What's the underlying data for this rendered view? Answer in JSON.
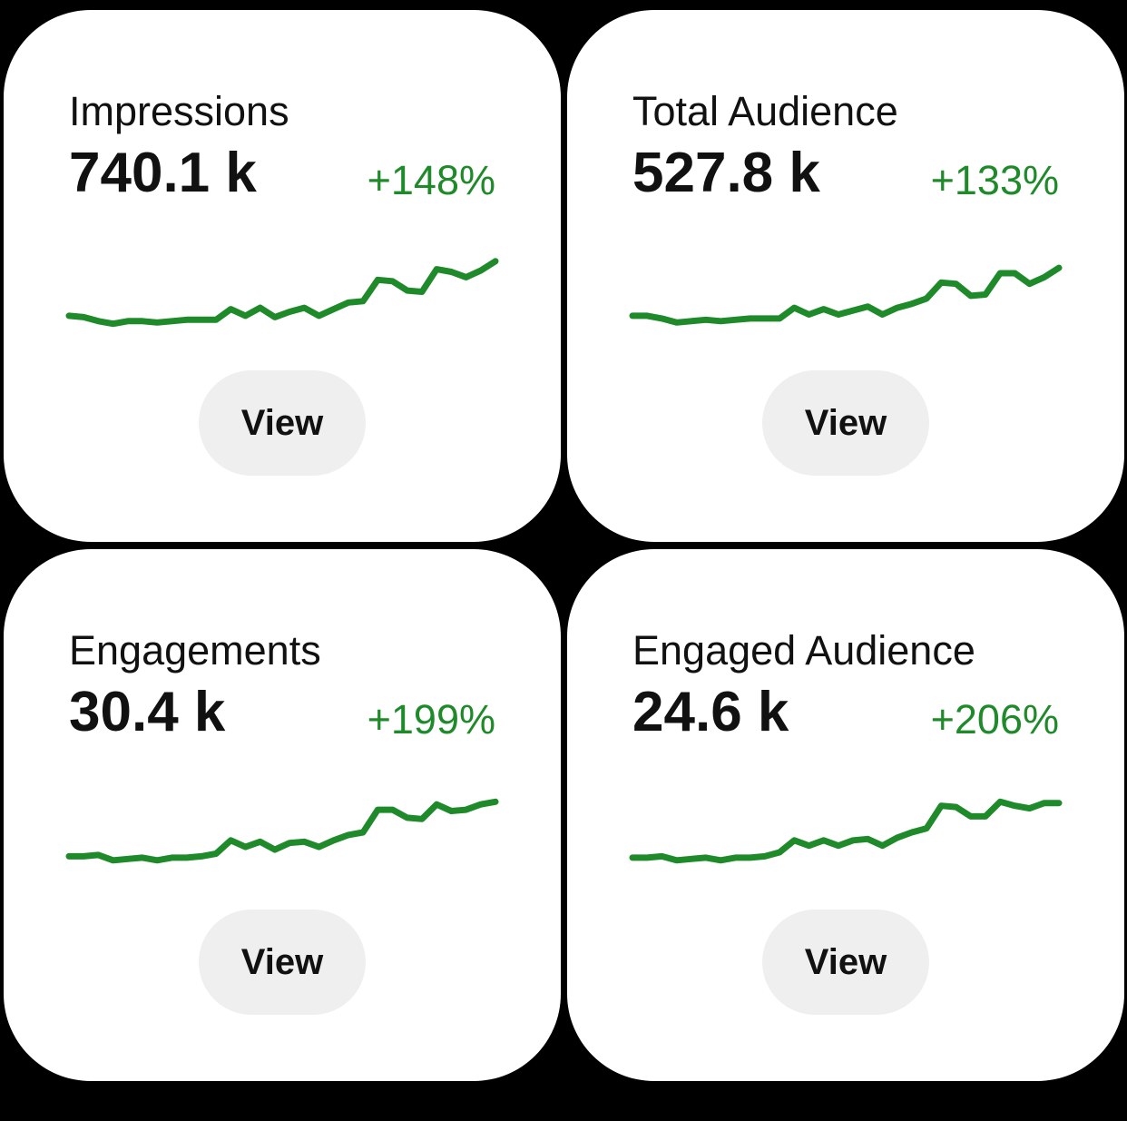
{
  "colors": {
    "background": "#000000",
    "card": "#ffffff",
    "positive": "#1f8a2a",
    "button": "#efefef",
    "text": "#111111"
  },
  "cards": [
    {
      "title": "Impressions",
      "value": "740.1 k",
      "change": "+148%",
      "button_label": "View",
      "chart_data": {
        "type": "line",
        "series": [
          {
            "values": [
              13,
              12,
              9,
              7,
              9,
              9,
              8,
              9,
              10,
              10,
              10,
              18,
              13,
              19,
              12,
              16,
              19,
              13,
              18,
              23,
              24,
              40,
              39,
              32,
              31,
              48,
              46,
              42,
              47,
              54
            ]
          }
        ]
      }
    },
    {
      "title": "Total Audience",
      "value": "527.8 k",
      "change": "+133%",
      "button_label": "View",
      "chart_data": {
        "type": "line",
        "series": [
          {
            "values": [
              13,
              13,
              11,
              8,
              9,
              10,
              9,
              10,
              11,
              11,
              11,
              19,
              14,
              18,
              14,
              17,
              20,
              14,
              19,
              22,
              26,
              38,
              37,
              28,
              29,
              45,
              45,
              37,
              42,
              49
            ]
          }
        ]
      }
    },
    {
      "title": "Engagements",
      "value": "30.4 k",
      "change": "+199%",
      "button_label": "View",
      "chart_data": {
        "type": "line",
        "series": [
          {
            "values": [
              12,
              12,
              13,
              9,
              10,
              11,
              9,
              11,
              11,
              12,
              14,
              24,
              19,
              23,
              17,
              22,
              23,
              19,
              24,
              28,
              30,
              47,
              47,
              41,
              40,
              51,
              46,
              47,
              51,
              53
            ]
          }
        ]
      }
    },
    {
      "title": "Engaged Audience",
      "value": "24.6 k",
      "change": "+206%",
      "button_label": "View",
      "chart_data": {
        "type": "line",
        "series": [
          {
            "values": [
              11,
              11,
              12,
              9,
              10,
              11,
              9,
              11,
              11,
              12,
              15,
              24,
              20,
              24,
              20,
              24,
              25,
              20,
              26,
              30,
              33,
              50,
              49,
              42,
              42,
              53,
              50,
              48,
              52,
              52
            ]
          }
        ]
      }
    }
  ]
}
